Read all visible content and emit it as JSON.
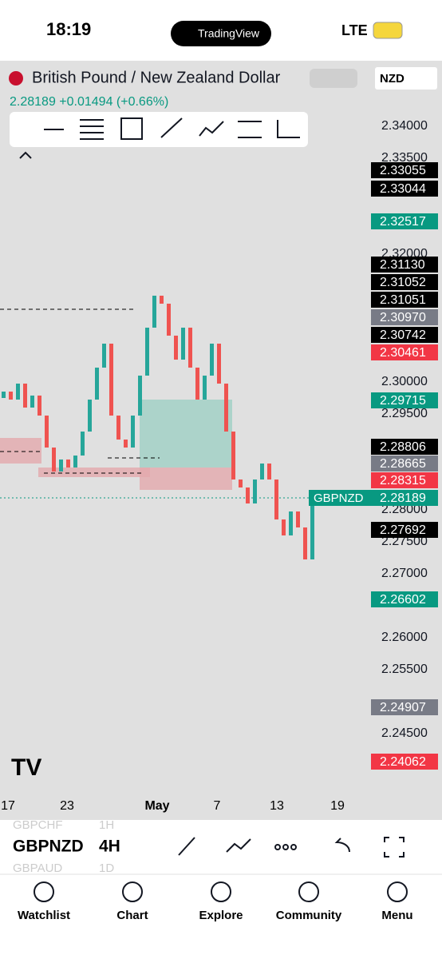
{
  "status_bar": {
    "time": "18:19",
    "app": "TradingView",
    "network": "LTE"
  },
  "header": {
    "title": "British Pound / New Zealand Dollar",
    "currency": "NZD",
    "quote": "2.28189 +0.01494 (+0.66%)"
  },
  "chart": {
    "type": "candlestick",
    "symbol_tag": "GBPNZD",
    "open": [
      2.2975,
      2.2985,
      2.29725,
      2.29975,
      2.296,
      2.29788,
      2.29475,
      2.28975,
      2.286,
      2.28788,
      2.28663,
      2.2885,
      2.29225,
      2.29725,
      2.30225,
      2.306,
      2.29475,
      2.291,
      2.28975,
      2.29475,
      2.301,
      2.3085,
      2.3135,
      2.31225,
      2.30725,
      2.3035,
      2.3085,
      2.30225,
      2.29725,
      2.301,
      2.306,
      2.29975,
      2.29225,
      2.28475,
      2.2835,
      2.281,
      2.28475,
      2.28725,
      2.28475,
      2.2785,
      2.276,
      2.27975,
      2.27725,
      2.27225,
      2.28225
    ],
    "close": [
      2.2985,
      2.29725,
      2.29975,
      2.296,
      2.29788,
      2.29475,
      2.28975,
      2.286,
      2.28788,
      2.28663,
      2.2885,
      2.29225,
      2.29725,
      2.30225,
      2.306,
      2.29475,
      2.291,
      2.28975,
      2.29475,
      2.301,
      2.3085,
      2.3135,
      2.31225,
      2.30725,
      2.3035,
      2.3085,
      2.30225,
      2.29725,
      2.301,
      2.306,
      2.29975,
      2.29225,
      2.28475,
      2.2835,
      2.281,
      2.28475,
      2.28725,
      2.28475,
      2.2785,
      2.276,
      2.27975,
      2.27725,
      2.27225,
      2.28225,
      2.28189
    ],
    "up_color": "#26a69a",
    "down_color": "#ef5350",
    "ylim": [
      2.35,
      2.2375
    ],
    "yticks": [
      {
        "value": 2.34,
        "label": "2.34000"
      },
      {
        "value": 2.335,
        "label": "2.33500"
      },
      {
        "value": 2.32,
        "label": "2.32000"
      },
      {
        "value": 2.3,
        "label": "2.30000"
      },
      {
        "value": 2.295,
        "label": "2.29500"
      },
      {
        "value": 2.28,
        "label": "2.28000"
      },
      {
        "value": 2.275,
        "label": "2.27500"
      },
      {
        "value": 2.27,
        "label": "2.27000"
      },
      {
        "value": 2.26,
        "label": "2.26000"
      },
      {
        "value": 2.255,
        "label": "2.25500"
      },
      {
        "value": 2.245,
        "label": "2.24500"
      }
    ],
    "xticks": [
      "17",
      "23",
      "May",
      "7",
      "13",
      "19"
    ],
    "price_tags": [
      {
        "label": "2.33055",
        "color": "#000"
      },
      {
        "label": "2.33044",
        "color": "#000"
      },
      {
        "label": "2.32517",
        "color": "#089981"
      },
      {
        "label": "2.31130",
        "color": "#000"
      },
      {
        "label": "2.31052",
        "color": "#000"
      },
      {
        "label": "2.31051",
        "color": "#000"
      },
      {
        "label": "2.30970",
        "color": "#787b86"
      },
      {
        "label": "2.30742",
        "color": "#000"
      },
      {
        "label": "2.30461",
        "color": "#f23645"
      },
      {
        "label": "2.29715",
        "color": "#089981"
      },
      {
        "label": "2.28806",
        "color": "#000"
      },
      {
        "label": "2.28665",
        "color": "#787b86"
      },
      {
        "label": "2.28315",
        "color": "#f23645"
      },
      {
        "label": "2.28189",
        "color": "#089981"
      },
      {
        "label": "2.27692",
        "color": "#000"
      },
      {
        "label": "2.26602",
        "color": "#089981"
      },
      {
        "label": "2.24907",
        "color": "#787b86"
      },
      {
        "label": "2.24062",
        "color": "#f23645"
      }
    ]
  },
  "toolbar": {
    "prev_symbol": "GBPCHF",
    "prev_interval": "1H",
    "symbol": "GBPNZD",
    "interval": "4H",
    "next_symbol": "GBPAUD",
    "next_interval": "1D"
  },
  "nav": [
    "Watchlist",
    "Chart",
    "Explore",
    "Community",
    "Menu"
  ]
}
